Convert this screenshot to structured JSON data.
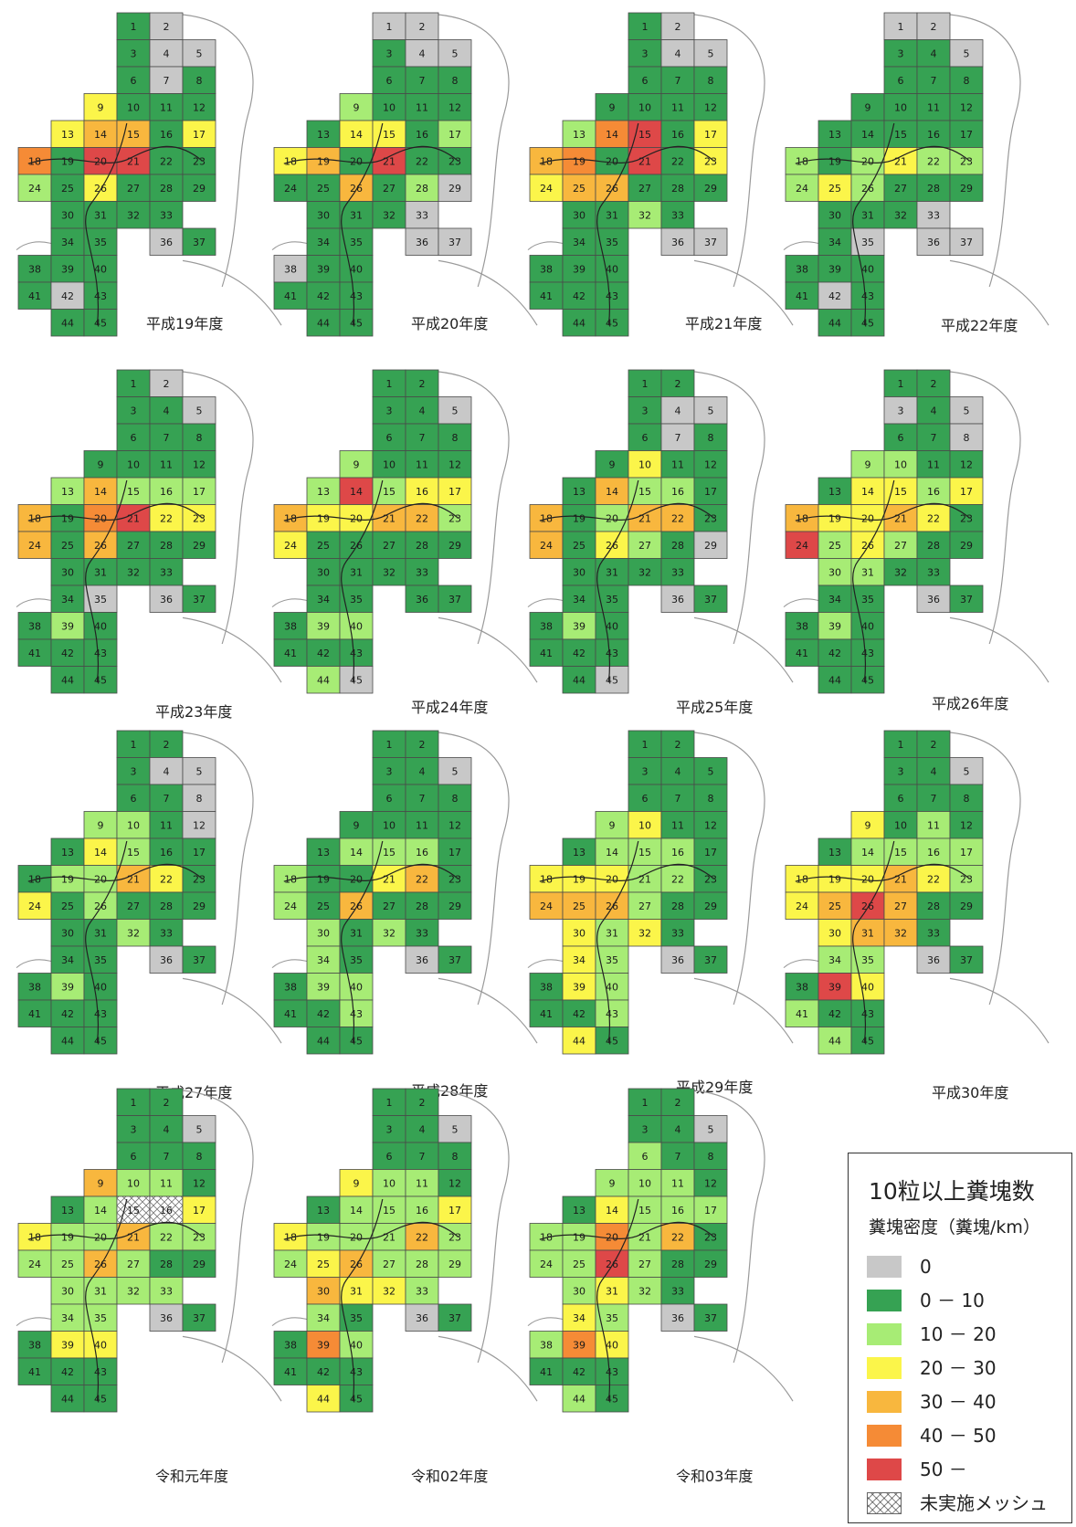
{
  "colors": {
    "0": "#c8c8c8",
    "1": "#36a253",
    "2": "#a7ec75",
    "3": "#fbf54a",
    "4": "#f8b73e",
    "5": "#f58b36",
    "6": "#de4848",
    "x": "#ffffff"
  },
  "cells": [
    "1",
    "2",
    "3",
    "4",
    "5",
    "6",
    "7",
    "8",
    "9",
    "10",
    "11",
    "12",
    "13",
    "14",
    "15",
    "16",
    "17",
    "18",
    "19",
    "20",
    "21",
    "22",
    "23",
    "24",
    "25",
    "26",
    "27",
    "28",
    "29",
    "30",
    "31",
    "32",
    "33",
    "34",
    "35",
    "36",
    "37",
    "38",
    "39",
    "40",
    "41",
    "42",
    "43",
    "44",
    "45"
  ],
  "panels": [
    {
      "title": "平成19年度",
      "c": [
        "1",
        "0",
        "1",
        "0",
        "0",
        "1",
        "0",
        "1",
        "3",
        "1",
        "1",
        "1",
        "3",
        "4",
        "4",
        "1",
        "3",
        "5",
        "1",
        "6",
        "6",
        "1",
        "1",
        "2",
        "1",
        "3",
        "1",
        "1",
        "1",
        "1",
        "1",
        "1",
        "1",
        "1",
        "1",
        "0",
        "1",
        "1",
        "1",
        "1",
        "1",
        "0",
        "1",
        "1",
        "1"
      ]
    },
    {
      "title": "平成20年度",
      "c": [
        "0",
        "0",
        "1",
        "0",
        "0",
        "1",
        "1",
        "1",
        "2",
        "1",
        "1",
        "1",
        "1",
        "3",
        "3",
        "1",
        "2",
        "3",
        "4",
        "1",
        "6",
        "1",
        "1",
        "1",
        "1",
        "4",
        "1",
        "2",
        "0",
        "1",
        "1",
        "1",
        "0",
        "1",
        "1",
        "0",
        "0",
        "0",
        "1",
        "1",
        "1",
        "1",
        "1",
        "1",
        "1"
      ]
    },
    {
      "title": "平成21年度",
      "c": [
        "1",
        "0",
        "1",
        "0",
        "0",
        "1",
        "1",
        "1",
        "1",
        "1",
        "1",
        "1",
        "2",
        "5",
        "6",
        "1",
        "3",
        "4",
        "5",
        "1",
        "6",
        "1",
        "3",
        "3",
        "4",
        "4",
        "1",
        "1",
        "1",
        "1",
        "1",
        "2",
        "1",
        "1",
        "1",
        "0",
        "0",
        "1",
        "1",
        "1",
        "1",
        "1",
        "1",
        "1",
        "1"
      ]
    },
    {
      "title": "平成22年度",
      "c": [
        "0",
        "0",
        "1",
        "1",
        "0",
        "1",
        "1",
        "1",
        "1",
        "1",
        "1",
        "1",
        "1",
        "1",
        "1",
        "1",
        "1",
        "2",
        "1",
        "2",
        "3",
        "2",
        "2",
        "2",
        "3",
        "2",
        "1",
        "1",
        "1",
        "1",
        "1",
        "1",
        "0",
        "1",
        "0",
        "0",
        "0",
        "1",
        "1",
        "1",
        "1",
        "0",
        "1",
        "1",
        "1"
      ]
    },
    {
      "title": "平成23年度",
      "c": [
        "1",
        "0",
        "1",
        "1",
        "0",
        "1",
        "1",
        "1",
        "1",
        "1",
        "1",
        "1",
        "2",
        "4",
        "2",
        "2",
        "2",
        "4",
        "1",
        "5",
        "6",
        "3",
        "3",
        "4",
        "1",
        "4",
        "1",
        "1",
        "1",
        "1",
        "1",
        "1",
        "1",
        "1",
        "0",
        "0",
        "1",
        "1",
        "2",
        "1",
        "1",
        "1",
        "1",
        "1",
        "1"
      ]
    },
    {
      "title": "平成24年度",
      "c": [
        "1",
        "1",
        "1",
        "1",
        "0",
        "1",
        "1",
        "1",
        "2",
        "1",
        "1",
        "1",
        "2",
        "6",
        "2",
        "3",
        "3",
        "4",
        "3",
        "3",
        "4",
        "4",
        "2",
        "3",
        "1",
        "1",
        "1",
        "1",
        "1",
        "1",
        "1",
        "1",
        "1",
        "1",
        "1",
        "1",
        "1",
        "1",
        "2",
        "2",
        "1",
        "1",
        "1",
        "2",
        "0"
      ]
    },
    {
      "title": "平成25年度",
      "c": [
        "1",
        "1",
        "1",
        "0",
        "0",
        "1",
        "0",
        "1",
        "1",
        "3",
        "1",
        "1",
        "1",
        "4",
        "2",
        "2",
        "1",
        "4",
        "1",
        "2",
        "4",
        "4",
        "1",
        "4",
        "1",
        "3",
        "2",
        "1",
        "0",
        "1",
        "1",
        "1",
        "1",
        "1",
        "1",
        "0",
        "1",
        "1",
        "2",
        "1",
        "1",
        "1",
        "1",
        "1",
        "0"
      ]
    },
    {
      "title": "平成26年度",
      "c": [
        "1",
        "1",
        "0",
        "1",
        "0",
        "1",
        "1",
        "0",
        "2",
        "2",
        "1",
        "1",
        "1",
        "3",
        "3",
        "2",
        "3",
        "4",
        "3",
        "3",
        "4",
        "3",
        "1",
        "6",
        "2",
        "3",
        "2",
        "1",
        "1",
        "2",
        "2",
        "1",
        "1",
        "1",
        "1",
        "0",
        "1",
        "1",
        "2",
        "1",
        "1",
        "1",
        "1",
        "1",
        "1"
      ]
    },
    {
      "title": "平成27年度",
      "c": [
        "1",
        "1",
        "1",
        "0",
        "0",
        "1",
        "1",
        "0",
        "2",
        "2",
        "1",
        "0",
        "1",
        "3",
        "2",
        "1",
        "1",
        "1",
        "2",
        "2",
        "4",
        "3",
        "1",
        "3",
        "1",
        "2",
        "1",
        "1",
        "1",
        "1",
        "1",
        "2",
        "1",
        "1",
        "1",
        "0",
        "1",
        "1",
        "2",
        "1",
        "1",
        "1",
        "1",
        "1",
        "1"
      ]
    },
    {
      "title": "平成28年度",
      "c": [
        "1",
        "1",
        "1",
        "1",
        "0",
        "1",
        "1",
        "1",
        "1",
        "1",
        "1",
        "1",
        "1",
        "2",
        "2",
        "2",
        "1",
        "2",
        "1",
        "1",
        "3",
        "4",
        "1",
        "2",
        "1",
        "4",
        "1",
        "1",
        "1",
        "2",
        "1",
        "2",
        "1",
        "2",
        "1",
        "0",
        "1",
        "1",
        "2",
        "2",
        "1",
        "1",
        "2",
        "1",
        "1"
      ]
    },
    {
      "title": "平成29年度",
      "c": [
        "1",
        "1",
        "1",
        "1",
        "1",
        "1",
        "1",
        "1",
        "2",
        "3",
        "1",
        "1",
        "1",
        "2",
        "2",
        "2",
        "1",
        "3",
        "3",
        "3",
        "2",
        "2",
        "1",
        "4",
        "4",
        "4",
        "2",
        "1",
        "1",
        "3",
        "2",
        "3",
        "1",
        "3",
        "2",
        "0",
        "1",
        "1",
        "3",
        "2",
        "1",
        "1",
        "2",
        "3",
        "1"
      ]
    },
    {
      "title": "平成30年度",
      "c": [
        "1",
        "1",
        "1",
        "1",
        "0",
        "1",
        "1",
        "1",
        "3",
        "1",
        "2",
        "1",
        "1",
        "2",
        "2",
        "2",
        "2",
        "3",
        "3",
        "3",
        "4",
        "3",
        "2",
        "3",
        "4",
        "6",
        "4",
        "1",
        "1",
        "3",
        "4",
        "4",
        "1",
        "2",
        "2",
        "0",
        "1",
        "1",
        "6",
        "3",
        "2",
        "1",
        "1",
        "2",
        "1"
      ]
    },
    {
      "title": "令和元年度",
      "c": [
        "1",
        "1",
        "1",
        "1",
        "0",
        "1",
        "1",
        "1",
        "4",
        "2",
        "2",
        "1",
        "1",
        "2",
        "x",
        "x",
        "3",
        "3",
        "2",
        "2",
        "4",
        "2",
        "2",
        "2",
        "2",
        "4",
        "2",
        "1",
        "1",
        "2",
        "2",
        "2",
        "2",
        "2",
        "2",
        "0",
        "1",
        "1",
        "3",
        "3",
        "1",
        "1",
        "1",
        "1",
        "1"
      ]
    },
    {
      "title": "令和02年度",
      "c": [
        "1",
        "1",
        "1",
        "1",
        "0",
        "1",
        "1",
        "1",
        "3",
        "2",
        "2",
        "1",
        "1",
        "2",
        "2",
        "2",
        "3",
        "3",
        "2",
        "2",
        "2",
        "4",
        "2",
        "2",
        "3",
        "4",
        "2",
        "2",
        "2",
        "4",
        "3",
        "3",
        "2",
        "2",
        "1",
        "0",
        "1",
        "1",
        "5",
        "2",
        "1",
        "1",
        "1",
        "3",
        "1"
      ]
    },
    {
      "title": "令和03年度",
      "c": [
        "1",
        "1",
        "1",
        "1",
        "0",
        "2",
        "1",
        "1",
        "2",
        "2",
        "2",
        "1",
        "1",
        "3",
        "2",
        "2",
        "2",
        "2",
        "2",
        "5",
        "2",
        "4",
        "1",
        "2",
        "2",
        "6",
        "2",
        "1",
        "1",
        "2",
        "3",
        "2",
        "1",
        "3",
        "2",
        "0",
        "1",
        "2",
        "5",
        "3",
        "1",
        "1",
        "1",
        "2",
        "1"
      ]
    }
  ],
  "legend": {
    "title": "10粒以上糞塊数",
    "subtitle": "糞塊密度（糞塊/km）",
    "items": [
      {
        "key": "0",
        "label": "0"
      },
      {
        "key": "1",
        "label": "0 － 10"
      },
      {
        "key": "2",
        "label": "10 － 20"
      },
      {
        "key": "3",
        "label": "20 － 30"
      },
      {
        "key": "4",
        "label": "30 － 40"
      },
      {
        "key": "5",
        "label": "40 － 50"
      },
      {
        "key": "6",
        "label": "50 －"
      },
      {
        "key": "x",
        "label": "未実施メッシュ"
      }
    ]
  }
}
